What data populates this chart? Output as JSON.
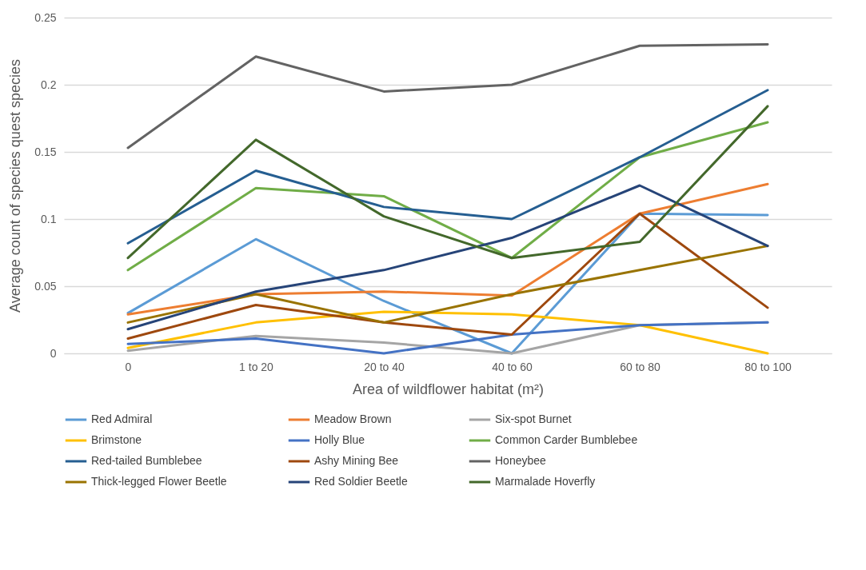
{
  "chart_data": {
    "type": "line",
    "xlabel": "Area of wildflower habitat (m²)",
    "ylabel": "Average count of species quest species",
    "categories": [
      "0",
      "1 to 20",
      "20 to 40",
      "40 to 60",
      "60 to 80",
      "80 to 100"
    ],
    "ylim": [
      0,
      0.25
    ],
    "yticks": [
      0,
      0.05,
      {
        "value": 0.1,
        "label": "0.1"
      },
      0.15,
      {
        "value": 0.2,
        "label": "0.2"
      },
      0.25
    ],
    "grid": "y",
    "legend": "bottom",
    "marker": "none",
    "line_style": "solid",
    "series": [
      {
        "name": "Red Admiral",
        "color": "#5b9bd5",
        "values": [
          0.03,
          0.085,
          0.039,
          0,
          0.104,
          0.103
        ]
      },
      {
        "name": "Meadow Brown",
        "color": "#ed7d31",
        "values": [
          0.029,
          0.044,
          0.046,
          0.043,
          0.104,
          0.126
        ]
      },
      {
        "name": "Six-spot Burnet",
        "color": "#a5a5a5",
        "values": [
          0.002,
          0.013,
          0.008,
          0,
          0.021,
          0.023
        ]
      },
      {
        "name": "Brimstone",
        "color": "#ffc000",
        "values": [
          0.004,
          0.023,
          0.031,
          0.029,
          0.021,
          0
        ]
      },
      {
        "name": "Holly Blue",
        "color": "#4472c4",
        "values": [
          0.007,
          0.011,
          0,
          0.014,
          0.021,
          0.023
        ]
      },
      {
        "name": "Common Carder Bumblebee",
        "color": "#70ad47",
        "values": [
          0.062,
          0.123,
          0.117,
          0.071,
          0.146,
          0.172
        ]
      },
      {
        "name": "Red-tailed Bumblebee",
        "color": "#255e91",
        "values": [
          0.082,
          0.136,
          0.109,
          0.1,
          0.146,
          0.196
        ]
      },
      {
        "name": "Ashy Mining Bee",
        "color": "#9e480e",
        "values": [
          0.011,
          0.036,
          0.023,
          0.014,
          0.104,
          0.034
        ]
      },
      {
        "name": "Honeybee",
        "color": "#636363",
        "values": [
          0.153,
          0.221,
          0.195,
          0.2,
          0.229,
          0.23
        ]
      },
      {
        "name": "Thick-legged Flower Beetle",
        "color": "#997300",
        "values": [
          0.023,
          0.044,
          0.023,
          0.044,
          0.062,
          0.08
        ]
      },
      {
        "name": "Red Soldier Beetle",
        "color": "#264478",
        "values": [
          0.018,
          0.046,
          0.062,
          0.086,
          0.125,
          0.08
        ]
      },
      {
        "name": "Marmalade Hoverfly",
        "color": "#43682b",
        "values": [
          0.071,
          0.159,
          0.102,
          0.071,
          0.083,
          0.184
        ]
      }
    ]
  }
}
